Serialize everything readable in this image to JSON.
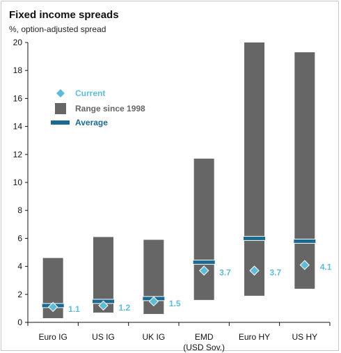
{
  "title": "Fixed income spreads",
  "subtitle": "%, option-adjusted spread",
  "colors": {
    "range": "#666666",
    "average": "#1a6a94",
    "current": "#5fbcd8",
    "label": "#5fbcd8"
  },
  "chart_data": {
    "type": "bar",
    "title": "Fixed income spreads",
    "subtitle": "%, option-adjusted spread",
    "ylim": [
      0,
      20
    ],
    "yticks": [
      0,
      2,
      4,
      6,
      8,
      10,
      12,
      14,
      16,
      18,
      20
    ],
    "grid": false,
    "legend_position": "top-left",
    "legend": {
      "current": "Current",
      "range": "Range since 1998",
      "average": "Average"
    },
    "categories": [
      {
        "line1": "Euro IG",
        "line2": ""
      },
      {
        "line1": "US IG",
        "line2": ""
      },
      {
        "line1": "UK IG",
        "line2": ""
      },
      {
        "line1": "EMD",
        "line2": "(USD Sov.)"
      },
      {
        "line1": "Euro HY",
        "line2": ""
      },
      {
        "line1": "US HY",
        "line2": ""
      }
    ],
    "range_min": [
      0.3,
      0.7,
      0.6,
      1.6,
      1.9,
      2.4
    ],
    "range_max": [
      4.6,
      6.1,
      5.9,
      11.7,
      20.0,
      19.3
    ],
    "average": [
      1.2,
      1.5,
      1.7,
      4.3,
      6.0,
      5.8
    ],
    "current": [
      1.1,
      1.2,
      1.5,
      3.7,
      3.7,
      4.1
    ],
    "current_labels": [
      "1.1",
      "1.2",
      "1.5",
      "3.7",
      "3.7",
      "4.1"
    ]
  }
}
